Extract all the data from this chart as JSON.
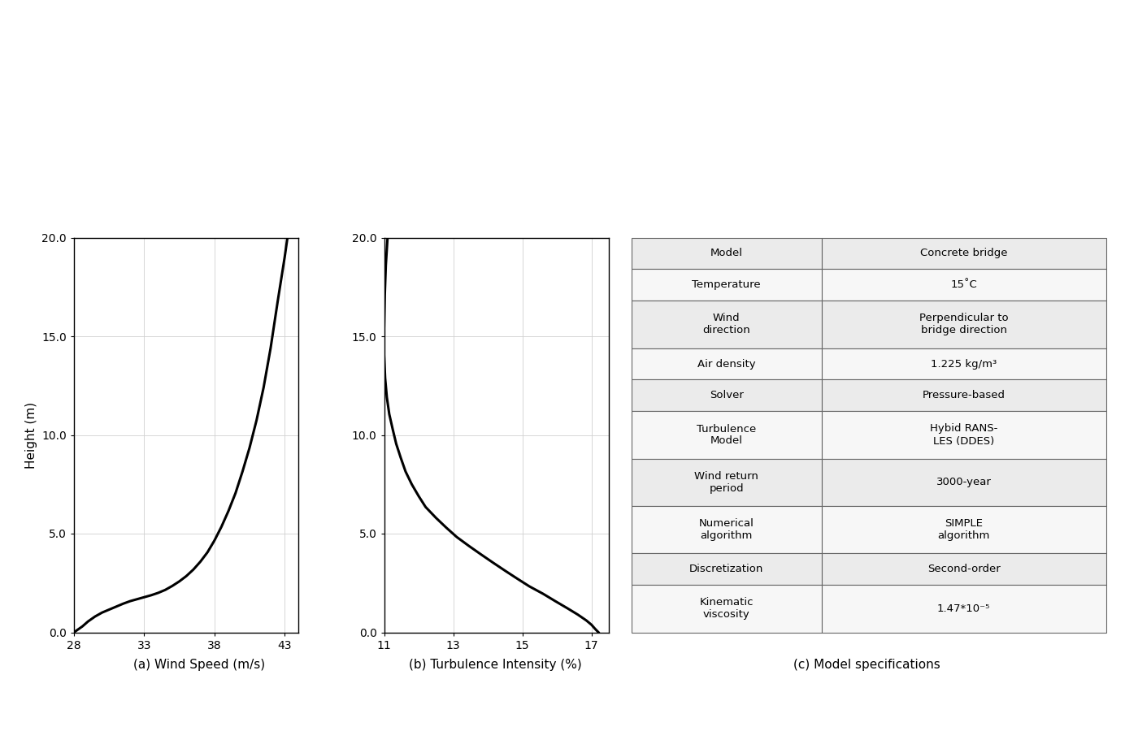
{
  "wind_speed_x": [
    28.0,
    28.3,
    28.6,
    29.0,
    29.5,
    30.0,
    30.5,
    31.0,
    31.5,
    32.0,
    32.5,
    33.0,
    33.5,
    34.0,
    34.5,
    35.0,
    35.5,
    36.0,
    36.5,
    37.0,
    37.5,
    38.0,
    38.5,
    39.0,
    39.5,
    40.0,
    40.5,
    41.0,
    41.5,
    42.0,
    42.5,
    43.0,
    43.2
  ],
  "wind_speed_y": [
    0.0,
    0.15,
    0.3,
    0.55,
    0.8,
    1.0,
    1.15,
    1.3,
    1.45,
    1.58,
    1.68,
    1.78,
    1.88,
    2.0,
    2.15,
    2.35,
    2.58,
    2.85,
    3.18,
    3.58,
    4.05,
    4.65,
    5.35,
    6.15,
    7.05,
    8.15,
    9.35,
    10.75,
    12.4,
    14.4,
    16.75,
    19.0,
    20.0
  ],
  "turb_x": [
    17.2,
    17.1,
    17.0,
    16.85,
    16.6,
    16.3,
    15.95,
    15.6,
    15.2,
    14.85,
    14.5,
    14.15,
    13.8,
    13.45,
    13.1,
    12.8,
    12.5,
    12.2,
    12.0,
    11.8,
    11.62,
    11.48,
    11.35,
    11.25,
    11.15,
    11.08,
    11.03,
    11.0,
    11.0,
    11.02,
    11.05,
    11.1
  ],
  "turb_y": [
    0.0,
    0.18,
    0.38,
    0.6,
    0.9,
    1.22,
    1.58,
    1.95,
    2.33,
    2.72,
    3.12,
    3.53,
    3.95,
    4.38,
    4.83,
    5.3,
    5.8,
    6.35,
    6.9,
    7.5,
    8.15,
    8.85,
    9.55,
    10.28,
    11.05,
    11.9,
    12.88,
    14.05,
    15.4,
    17.1,
    18.6,
    20.0
  ],
  "xlabel_a": "(a) Wind Speed (m/s)",
  "xlabel_b": "(b) Turbulence Intensity (%)",
  "xlabel_c": "(c) Model specifications",
  "ylabel": "Height (m)",
  "xlim_a": [
    28,
    44
  ],
  "xlim_b": [
    11,
    17.5
  ],
  "ylim": [
    0,
    20
  ],
  "xticks_a": [
    28,
    33,
    38,
    43
  ],
  "xticks_b": [
    11,
    13,
    15,
    17
  ],
  "yticks": [
    0.0,
    5.0,
    10.0,
    15.0,
    20.0
  ],
  "table_rows": [
    [
      "Model",
      "Concrete bridge"
    ],
    [
      "Temperature",
      "15˚C"
    ],
    [
      "Wind\ndirection",
      "Perpendicular to\nbridge direction"
    ],
    [
      "Air density",
      "1.225 kg/m³"
    ],
    [
      "Solver",
      "Pressure-based"
    ],
    [
      "Turbulence\nModel",
      "Hybid RANS-\nLES (DDES)"
    ],
    [
      "Wind return\nperiod",
      "3000-year"
    ],
    [
      "Numerical\nalgorithm",
      "SIMPLE\nalgorithm"
    ],
    [
      "Discretization",
      "Second-order"
    ],
    [
      "Kinematic\nviscosity",
      "1.47*10⁻⁵"
    ]
  ],
  "table_row_heights": [
    1.0,
    1.0,
    1.5,
    1.0,
    1.0,
    1.5,
    1.5,
    1.5,
    1.0,
    1.5
  ],
  "bg_color": "#ffffff",
  "line_color": "#000000",
  "grid_color": "#d0d0d0",
  "table_odd_bg": "#ebebeb",
  "table_even_bg": "#f7f7f7",
  "table_border": "#666666"
}
